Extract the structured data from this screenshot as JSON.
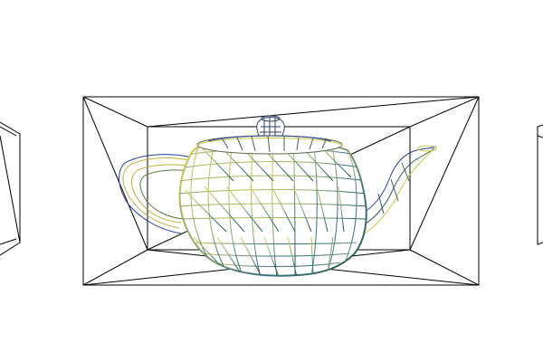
{
  "scene": {
    "background": "#ffffff",
    "line_color": "#000000",
    "teapot_colors": {
      "top_left": "#c8c83a",
      "top_right": "#2a3a9a",
      "bottom": "#2f7a2a",
      "edge_highlight": "#d8d860"
    },
    "objects": [
      "left-box-frame",
      "center-box-frame",
      "teapot-wireframe",
      "right-box-frame"
    ]
  }
}
